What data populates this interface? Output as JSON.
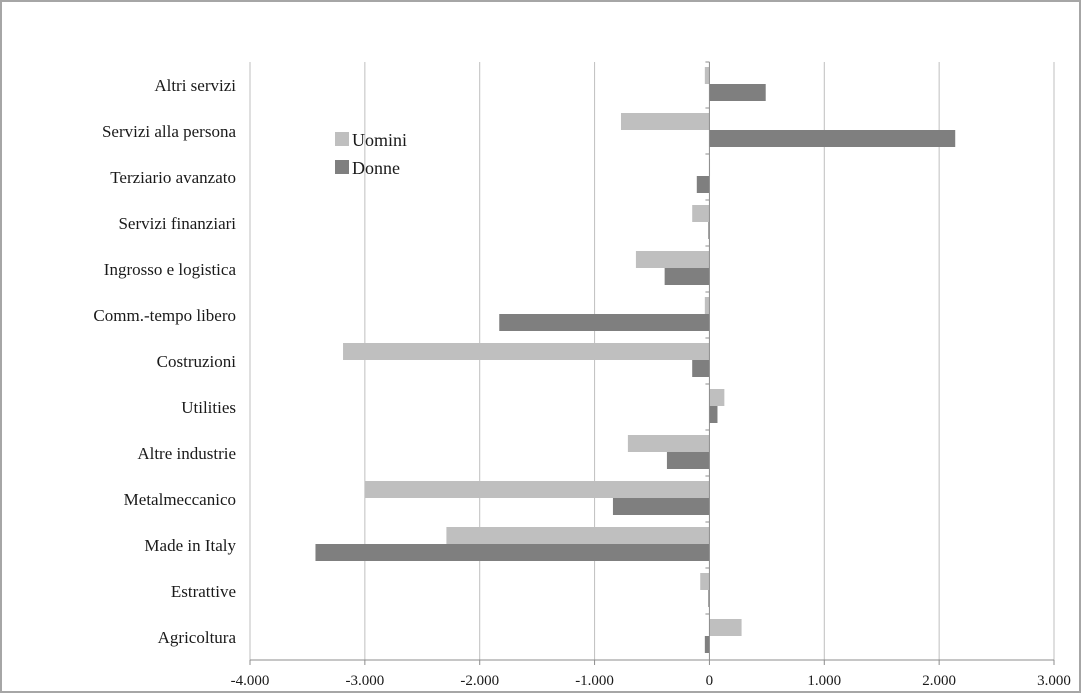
{
  "chart_data": {
    "type": "bar",
    "orientation": "horizontal",
    "categories": [
      "Altri servizi",
      "Servizi alla persona",
      "Terziario avanzato",
      "Servizi finanziari",
      "Ingrosso e logistica",
      "Comm.-tempo libero",
      "Costruzioni",
      "Utilities",
      "Altre industrie",
      "Metalmeccanico",
      "Made in Italy",
      "Estrattive",
      "Agricoltura"
    ],
    "series": [
      {
        "name": "Uomini",
        "color": "#bfbfbf",
        "values": [
          -40,
          -770,
          0,
          -150,
          -640,
          -40,
          -3190,
          130,
          -710,
          -3000,
          -2290,
          -80,
          280
        ]
      },
      {
        "name": "Donne",
        "color": "#7f7f7f",
        "values": [
          490,
          2140,
          -110,
          -10,
          -390,
          -1830,
          -150,
          70,
          -370,
          -840,
          -3430,
          -10,
          -40
        ]
      }
    ],
    "xlim": [
      -4000,
      3000
    ],
    "xticks": [
      -4000,
      -3000,
      -2000,
      -1000,
      0,
      1000,
      2000,
      3000
    ],
    "xtick_labels": [
      "-4.000",
      "-3.000",
      "-2.000",
      "-1.000",
      "0",
      "1.000",
      "2.000",
      "3.000"
    ],
    "grid": true,
    "legend": "top-left",
    "title": "",
    "xlabel": "",
    "ylabel": ""
  }
}
